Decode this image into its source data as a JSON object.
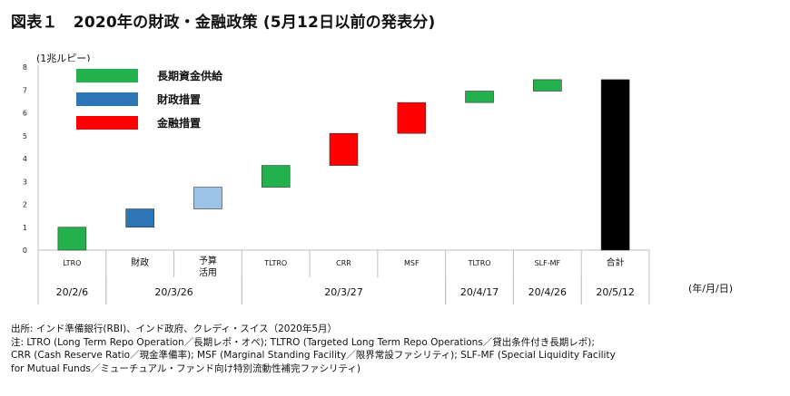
{
  "header": {
    "title": "図表１　2020年の財政・金融政策 (5月12日以前の発表分)",
    "unit": "(1兆ルピー)",
    "date_unit": "(年/月/日)"
  },
  "chart_data": {
    "type": "bar",
    "subtype": "waterfall",
    "y_ticks": [
      "0",
      "1",
      "2",
      "3",
      "4",
      "5",
      "6",
      "7",
      "8"
    ],
    "ylim": [
      0,
      8
    ],
    "grid": false,
    "legend_position": "top-left",
    "legend": [
      {
        "label": "長期資金供給",
        "color": "#22b14c"
      },
      {
        "label": "財政措置",
        "color": "#2e75b6"
      },
      {
        "label": "金融措置",
        "color": "#ff0000"
      }
    ],
    "bars": [
      {
        "category": "LTRO",
        "start": 0,
        "end": 1.0,
        "color": "#22b14c"
      },
      {
        "category": "財政",
        "start": 1.0,
        "end": 1.8,
        "color": "#2e75b6"
      },
      {
        "category": "予算\n活用",
        "start": 1.8,
        "end": 2.75,
        "color": "#9dc3e6"
      },
      {
        "category": "TLTRO",
        "start": 2.75,
        "end": 3.7,
        "color": "#22b14c"
      },
      {
        "category": "CRR",
        "start": 3.7,
        "end": 5.1,
        "color": "#ff0000"
      },
      {
        "category": "MSF",
        "start": 5.1,
        "end": 6.45,
        "color": "#ff0000"
      },
      {
        "category": "TLTRO",
        "start": 6.45,
        "end": 6.95,
        "color": "#22b14c"
      },
      {
        "category": "SLF-MF",
        "start": 6.95,
        "end": 7.45,
        "color": "#22b14c"
      },
      {
        "category": "合計",
        "start": 0,
        "end": 7.45,
        "color": "#000000"
      }
    ],
    "date_groups": [
      {
        "label": "20/2/6",
        "first": 0,
        "last": 0
      },
      {
        "label": "20/3/26",
        "first": 1,
        "last": 2
      },
      {
        "label": "20/3/27",
        "first": 3,
        "last": 5
      },
      {
        "label": "20/4/17",
        "first": 6,
        "last": 6
      },
      {
        "label": "20/4/26",
        "first": 7,
        "last": 7
      },
      {
        "label": "20/5/12",
        "first": 8,
        "last": 8
      }
    ]
  },
  "notes": {
    "source": "出所: インド準備銀行(RBI)、インド政府、クレディ・スイス（2020年5月）",
    "note_1": "注: LTRO (Long Term Repo Operation／長期レポ・オペ); TLTRO (Targeted Long Term Repo Operations／貸出条件付き長期レポ);",
    "note_2": "CRR (Cash Reserve Ratio／現金準備率); MSF (Marginal Standing Facility／限界常設ファシリティ); SLF-MF (Special Liquidity Facility",
    "note_3": "for Mutual Funds／ミューチュアル・ファンド向け特別流動性補完ファシリティ)"
  }
}
